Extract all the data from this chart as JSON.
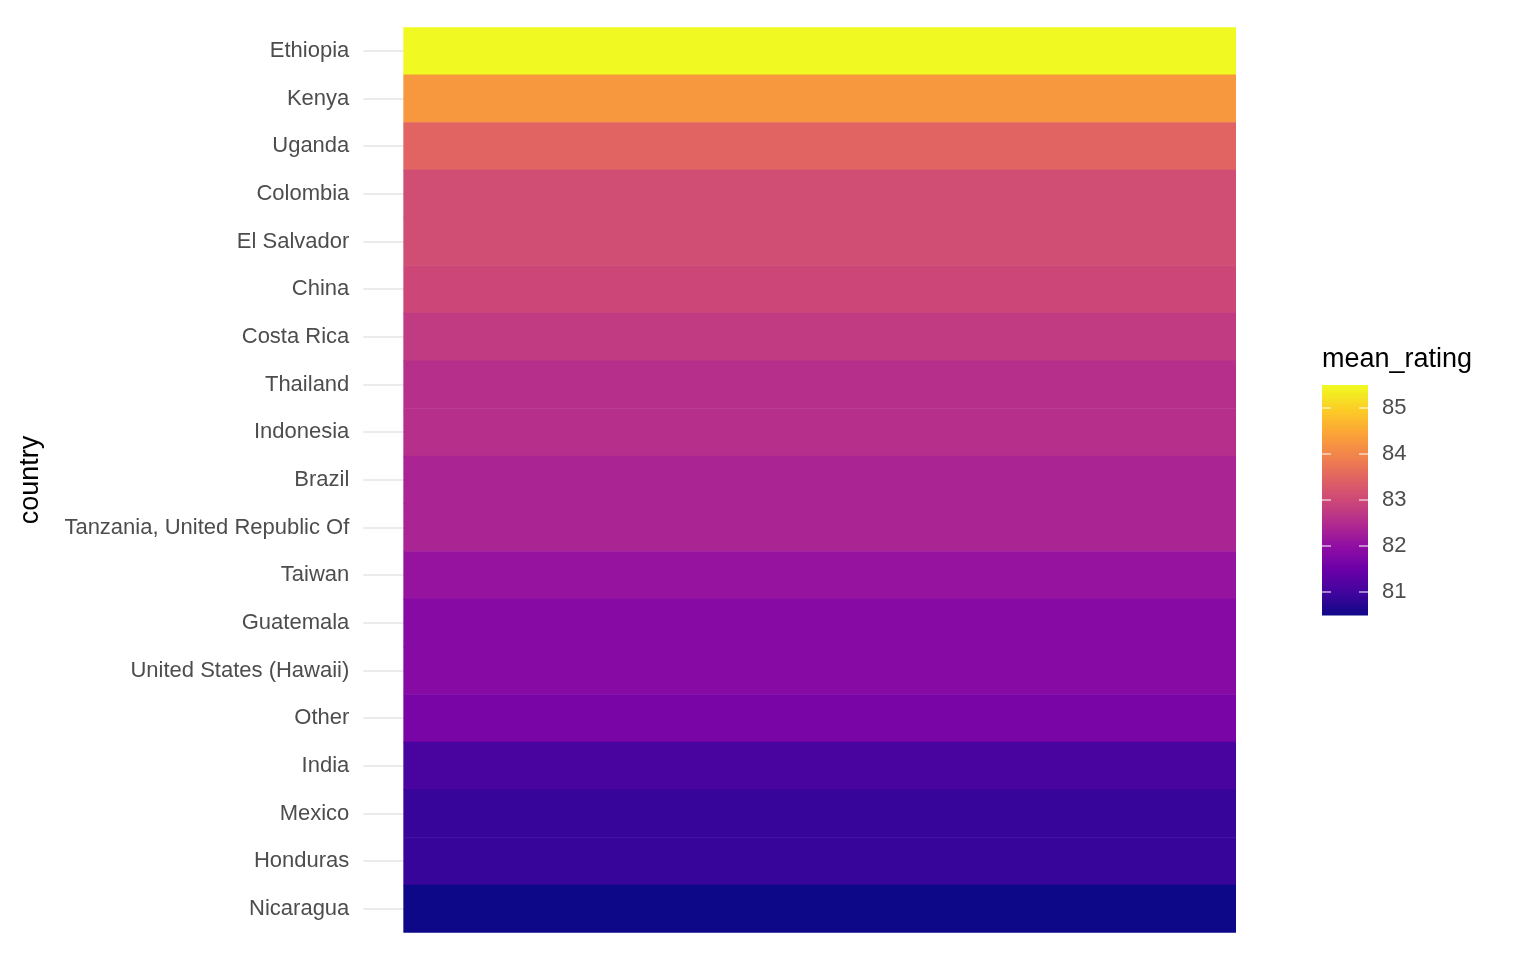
{
  "chart_data": {
    "type": "heatmap",
    "ylabel": "country",
    "legend_title": "mean_rating",
    "categories": [
      null
    ],
    "y_categories": [
      "Ethiopia",
      "Kenya",
      "Uganda",
      "Colombia",
      "El Salvador",
      "China",
      "Costa Rica",
      "Thailand",
      "Indonesia",
      "Brazil",
      "Tanzania, United Republic Of",
      "Taiwan",
      "Guatemala",
      "United States (Hawaii)",
      "Other",
      "India",
      "Mexico",
      "Honduras",
      "Nicaragua"
    ],
    "cells": [
      [
        85.5
      ],
      [
        84.3
      ],
      [
        83.5
      ],
      [
        83.1
      ],
      [
        83.1
      ],
      [
        83.0
      ],
      [
        82.8
      ],
      [
        82.6
      ],
      [
        82.6
      ],
      [
        82.4
      ],
      [
        82.4
      ],
      [
        82.1
      ],
      [
        81.9
      ],
      [
        81.9
      ],
      [
        81.7
      ],
      [
        81.1
      ],
      [
        80.9
      ],
      [
        80.9
      ],
      [
        80.5
      ]
    ],
    "clim": [
      80.5,
      85.5
    ],
    "cticks": [
      81,
      82,
      83,
      84,
      85
    ],
    "grid": "y"
  }
}
